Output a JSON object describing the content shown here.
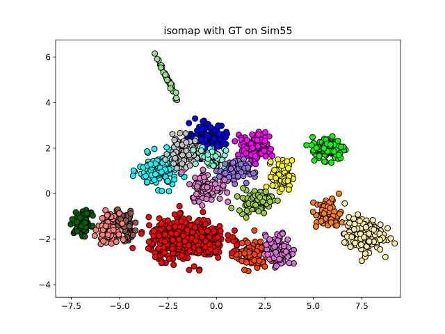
{
  "chart_data": {
    "type": "scatter",
    "title": "isomap with GT on Sim55",
    "xlabel": "",
    "ylabel": "",
    "xlim": [
      -8.3,
      9.5
    ],
    "ylim": [
      -4.55,
      6.75
    ],
    "x_ticks": [
      -7.5,
      -5.0,
      -2.5,
      0.0,
      2.5,
      5.0,
      7.5
    ],
    "x_tick_labels": [
      "−7.5",
      "−5.0",
      "−2.5",
      "0.0",
      "2.5",
      "5.0",
      "7.5"
    ],
    "y_ticks": [
      -4,
      -2,
      0,
      2,
      4,
      6
    ],
    "y_tick_labels": [
      "−4",
      "−2",
      "0",
      "2",
      "4",
      "6"
    ],
    "grid": false,
    "legend": "none",
    "marker_edge_color": "#000000",
    "clusters": [
      {
        "color": "#98df8a",
        "shape": "line",
        "from": [
          -3.2,
          6.2
        ],
        "to": [
          -2.0,
          4.1
        ],
        "n": 38
      },
      {
        "color": "#0000ff",
        "center": [
          -0.5,
          2.5
        ],
        "spread": [
          0.9,
          0.55
        ],
        "n": 130
      },
      {
        "color": "#ff00ff",
        "center": [
          2.0,
          2.05
        ],
        "spread": [
          0.8,
          0.5
        ],
        "n": 130
      },
      {
        "color": "#00ffff",
        "center": [
          -3.0,
          1.0
        ],
        "spread": [
          0.9,
          0.65
        ],
        "n": 120
      },
      {
        "color": "#c0c0c0",
        "center": [
          -1.7,
          1.8
        ],
        "spread": [
          0.7,
          0.6
        ],
        "n": 110
      },
      {
        "color": "#7fffd4",
        "center": [
          -0.2,
          1.6
        ],
        "spread": [
          0.6,
          0.45
        ],
        "n": 50
      },
      {
        "color": "#9370db",
        "center": [
          0.9,
          1.0
        ],
        "spread": [
          0.7,
          0.45
        ],
        "n": 90
      },
      {
        "color": "#ffff00",
        "center": [
          3.4,
          0.8
        ],
        "spread": [
          0.45,
          0.6
        ],
        "n": 90
      },
      {
        "color": "#00ff00",
        "center": [
          5.8,
          2.0
        ],
        "spread": [
          0.8,
          0.45
        ],
        "n": 130
      },
      {
        "color": "#db7bc7",
        "center": [
          -0.5,
          0.3
        ],
        "spread": [
          0.7,
          0.55
        ],
        "n": 110
      },
      {
        "color": "#9acd32",
        "center": [
          2.0,
          -0.3
        ],
        "spread": [
          0.8,
          0.45
        ],
        "n": 100
      },
      {
        "color": "#ff7f0e",
        "center": [
          5.8,
          -0.9
        ],
        "spread": [
          0.6,
          0.6
        ],
        "n": 70
      },
      {
        "color": "#ffeea0",
        "center": [
          7.6,
          -1.8
        ],
        "spread": [
          0.9,
          0.7
        ],
        "n": 170
      },
      {
        "color": "#ff4500",
        "center": [
          1.8,
          -2.7
        ],
        "spread": [
          0.8,
          0.55
        ],
        "n": 100
      },
      {
        "color": "#da70d6",
        "center": [
          3.2,
          -2.5
        ],
        "spread": [
          0.6,
          0.6
        ],
        "n": 110
      },
      {
        "color": "#ff0000",
        "center": [
          -1.5,
          -2.0
        ],
        "spread": [
          1.8,
          0.8
        ],
        "n": 450
      },
      {
        "color": "#8b5a4a",
        "center": [
          -4.8,
          -1.4
        ],
        "spread": [
          0.5,
          0.6
        ],
        "n": 90
      },
      {
        "color": "#fa8072",
        "center": [
          -5.6,
          -1.5
        ],
        "spread": [
          0.45,
          0.55
        ],
        "n": 90
      },
      {
        "color": "#006400",
        "center": [
          -6.9,
          -1.3
        ],
        "spread": [
          0.4,
          0.45
        ],
        "n": 80
      }
    ]
  }
}
